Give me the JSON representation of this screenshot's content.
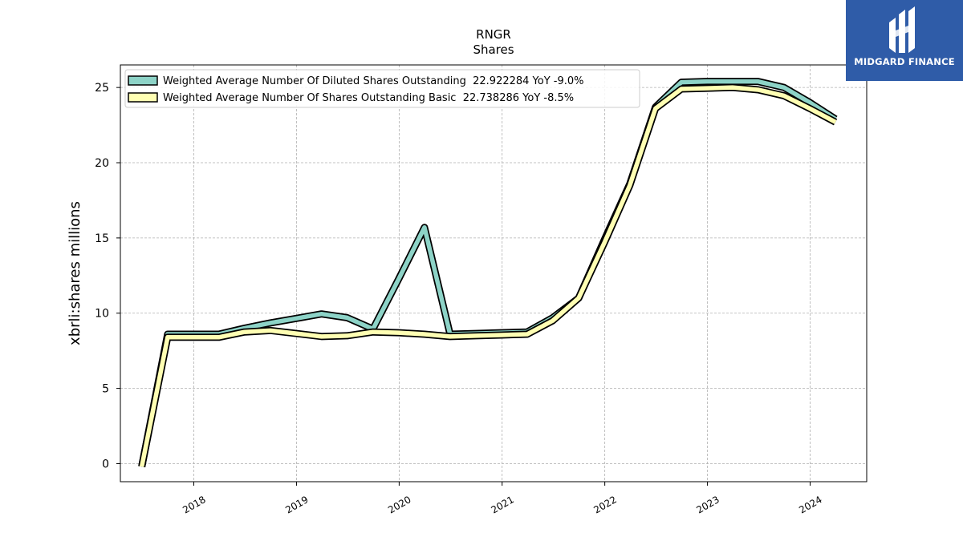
{
  "chart_data": {
    "type": "line",
    "title": "RNGR",
    "subtitle": "Shares",
    "ylabel": "xbrli:shares millions",
    "xlabel": "",
    "ylim": [
      -1.2,
      26.5
    ],
    "xlim": [
      "2017-04-15",
      "2024-07-20"
    ],
    "yticks": [
      0,
      5,
      10,
      15,
      20,
      25
    ],
    "xticks": [
      "2018",
      "2019",
      "2020",
      "2021",
      "2022",
      "2023",
      "2024"
    ],
    "grid": true,
    "legend_position": "top-left",
    "series": [
      {
        "name": "Weighted Average Number Of Diluted Shares Outstanding  22.922284 YoY -9.0%",
        "color": "#8dd3c7",
        "points": [
          [
            "2017-06-30",
            -0.2
          ],
          [
            "2017-09-30",
            8.6
          ],
          [
            "2017-12-31",
            8.6
          ],
          [
            "2018-03-31",
            8.6
          ],
          [
            "2018-06-30",
            9.0
          ],
          [
            "2018-09-30",
            9.35
          ],
          [
            "2018-12-31",
            9.65
          ],
          [
            "2019-03-31",
            9.95
          ],
          [
            "2019-06-30",
            9.7
          ],
          [
            "2019-09-30",
            8.95
          ],
          [
            "2019-12-31",
            12.3
          ],
          [
            "2020-03-31",
            15.7
          ],
          [
            "2020-06-30",
            8.6
          ],
          [
            "2020-09-30",
            8.65
          ],
          [
            "2020-12-31",
            8.7
          ],
          [
            "2021-03-31",
            8.75
          ],
          [
            "2021-06-30",
            9.7
          ],
          [
            "2021-09-30",
            11.0
          ],
          [
            "2021-12-31",
            14.9
          ],
          [
            "2022-03-31",
            18.6
          ],
          [
            "2022-06-30",
            23.7
          ],
          [
            "2022-09-30",
            25.35
          ],
          [
            "2022-12-31",
            25.4
          ],
          [
            "2023-03-31",
            25.4
          ],
          [
            "2023-06-30",
            25.4
          ],
          [
            "2023-09-30",
            25.0
          ],
          [
            "2023-12-31",
            24.0
          ],
          [
            "2024-03-31",
            22.9
          ]
        ]
      },
      {
        "name": "Weighted Average Number Of Shares Outstanding Basic  22.738286 YoY -8.5%",
        "color": "#ffffb3",
        "points": [
          [
            "2017-06-30",
            -0.2
          ],
          [
            "2017-09-30",
            8.4
          ],
          [
            "2017-12-31",
            8.4
          ],
          [
            "2018-03-31",
            8.4
          ],
          [
            "2018-06-30",
            8.75
          ],
          [
            "2018-09-30",
            8.85
          ],
          [
            "2018-12-31",
            8.65
          ],
          [
            "2019-03-31",
            8.45
          ],
          [
            "2019-06-30",
            8.5
          ],
          [
            "2019-09-30",
            8.75
          ],
          [
            "2019-12-31",
            8.7
          ],
          [
            "2020-03-31",
            8.6
          ],
          [
            "2020-06-30",
            8.45
          ],
          [
            "2020-09-30",
            8.5
          ],
          [
            "2020-12-31",
            8.55
          ],
          [
            "2021-03-31",
            8.6
          ],
          [
            "2021-06-30",
            9.5
          ],
          [
            "2021-09-30",
            11.0
          ],
          [
            "2021-12-31",
            14.7
          ],
          [
            "2022-03-31",
            18.5
          ],
          [
            "2022-06-30",
            23.6
          ],
          [
            "2022-09-30",
            24.9
          ],
          [
            "2022-12-31",
            24.95
          ],
          [
            "2023-03-31",
            25.0
          ],
          [
            "2023-06-30",
            24.85
          ],
          [
            "2023-09-30",
            24.45
          ],
          [
            "2023-12-31",
            23.6
          ],
          [
            "2024-03-31",
            22.7
          ]
        ]
      }
    ]
  },
  "logo": {
    "text": "MIDGARD FINANCE"
  }
}
